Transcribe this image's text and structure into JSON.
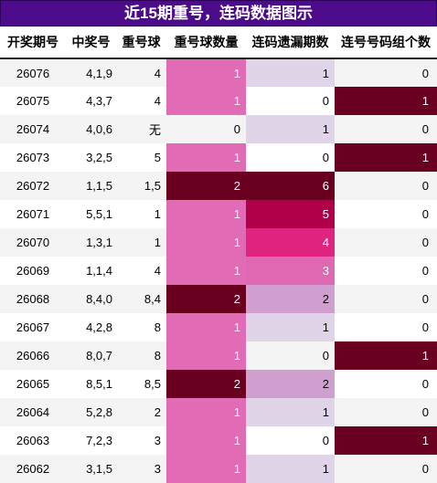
{
  "title": "近15期重号，连码数据图示",
  "headers": [
    "开奖期号",
    "中奖号",
    "重号球",
    "重号球数量",
    "连码遗漏期数",
    "连号号码组个数"
  ],
  "colors": {
    "title_bg": "#4b0b8a",
    "count_1": "#e26bb6",
    "count_2": "#6a0020",
    "count_0": "#ffffff",
    "miss_0": "#ffffff",
    "miss_1": "#e0d4e8",
    "miss_2": "#cf9fcf",
    "miss_3": "#df68b2",
    "miss_4": "#e0237f",
    "miss_5": "#b0004a",
    "miss_6": "#6a0020",
    "group_1": "#6a0020",
    "group_0": "#ffffff"
  },
  "rows": [
    {
      "period": "26076",
      "numbers": "4,1,9",
      "repeat": "4",
      "repeat_count": "1",
      "miss": "1",
      "groups": "0"
    },
    {
      "period": "26075",
      "numbers": "4,3,7",
      "repeat": "4",
      "repeat_count": "1",
      "miss": "0",
      "groups": "1"
    },
    {
      "period": "26074",
      "numbers": "4,0,6",
      "repeat": "无",
      "repeat_count": "0",
      "miss": "1",
      "groups": "0"
    },
    {
      "period": "26073",
      "numbers": "3,2,5",
      "repeat": "5",
      "repeat_count": "1",
      "miss": "0",
      "groups": "1"
    },
    {
      "period": "26072",
      "numbers": "1,1,5",
      "repeat": "1,5",
      "repeat_count": "2",
      "miss": "6",
      "groups": "0"
    },
    {
      "period": "26071",
      "numbers": "5,5,1",
      "repeat": "1",
      "repeat_count": "1",
      "miss": "5",
      "groups": "0"
    },
    {
      "period": "26070",
      "numbers": "1,3,1",
      "repeat": "1",
      "repeat_count": "1",
      "miss": "4",
      "groups": "0"
    },
    {
      "period": "26069",
      "numbers": "1,1,4",
      "repeat": "4",
      "repeat_count": "1",
      "miss": "3",
      "groups": "0"
    },
    {
      "period": "26068",
      "numbers": "8,4,0",
      "repeat": "8,4",
      "repeat_count": "2",
      "miss": "2",
      "groups": "0"
    },
    {
      "period": "26067",
      "numbers": "4,2,8",
      "repeat": "8",
      "repeat_count": "1",
      "miss": "1",
      "groups": "0"
    },
    {
      "period": "26066",
      "numbers": "8,0,7",
      "repeat": "8",
      "repeat_count": "1",
      "miss": "0",
      "groups": "1"
    },
    {
      "period": "26065",
      "numbers": "8,5,1",
      "repeat": "8,5",
      "repeat_count": "2",
      "miss": "2",
      "groups": "0"
    },
    {
      "period": "26064",
      "numbers": "5,2,8",
      "repeat": "2",
      "repeat_count": "1",
      "miss": "1",
      "groups": "0"
    },
    {
      "period": "26063",
      "numbers": "7,2,3",
      "repeat": "3",
      "repeat_count": "1",
      "miss": "0",
      "groups": "1"
    },
    {
      "period": "26062",
      "numbers": "3,1,5",
      "repeat": "3",
      "repeat_count": "1",
      "miss": "1",
      "groups": "0"
    }
  ]
}
